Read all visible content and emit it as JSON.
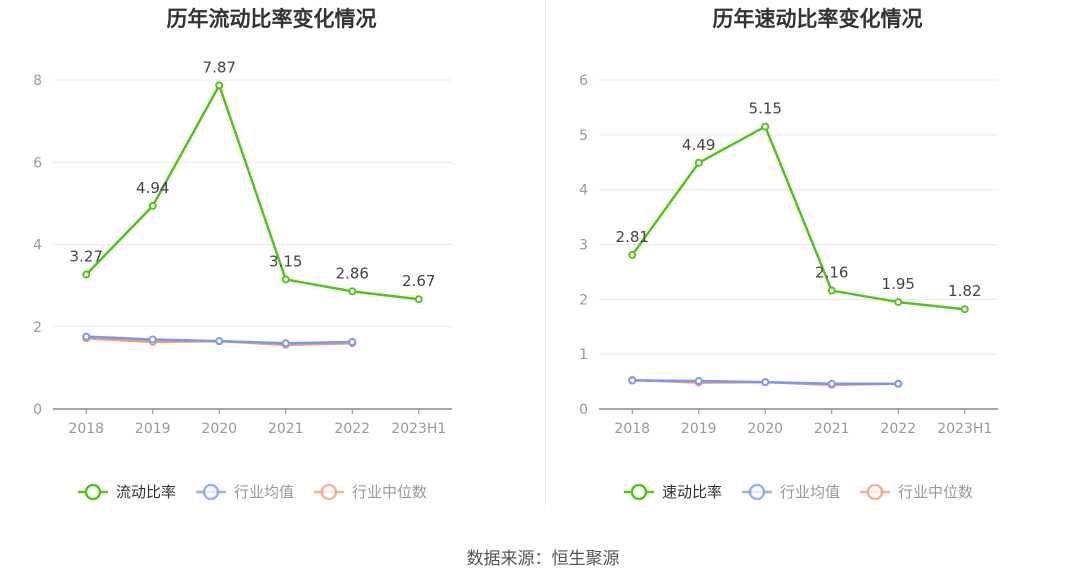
{
  "chart_data": [
    {
      "type": "line",
      "title": "历年流动比率变化情况",
      "categories": [
        "2018",
        "2019",
        "2020",
        "2021",
        "2022",
        "2023H1"
      ],
      "ylim": [
        0,
        8
      ],
      "yticks": [
        0,
        2,
        4,
        6,
        8
      ],
      "grid": true,
      "legend_position": "bottom",
      "series": [
        {
          "name": "流动比率",
          "color": "#52c41a",
          "values": [
            3.27,
            4.94,
            7.87,
            3.15,
            2.86,
            2.67
          ],
          "labels": [
            "3.27",
            "4.94",
            "7.87",
            "3.15",
            "2.86",
            "2.67"
          ]
        },
        {
          "name": "行业均值",
          "color": "#7a9ae8",
          "values": [
            1.76,
            1.69,
            1.65,
            1.6,
            1.63,
            null
          ]
        },
        {
          "name": "行业中位数",
          "color": "#f59a76",
          "values": [
            1.72,
            1.63,
            1.65,
            1.56,
            1.6,
            null
          ]
        }
      ]
    },
    {
      "type": "line",
      "title": "历年速动比率变化情况",
      "categories": [
        "2018",
        "2019",
        "2020",
        "2021",
        "2022",
        "2023H1"
      ],
      "ylim": [
        0,
        6
      ],
      "yticks": [
        0,
        1,
        2,
        3,
        4,
        5,
        6
      ],
      "grid": true,
      "legend_position": "bottom",
      "series": [
        {
          "name": "速动比率",
          "color": "#52c41a",
          "values": [
            2.81,
            4.49,
            5.15,
            2.16,
            1.95,
            1.82
          ],
          "labels": [
            "2.81",
            "4.49",
            "5.15",
            "2.16",
            "1.95",
            "1.82"
          ]
        },
        {
          "name": "行业均值",
          "color": "#7a9ae8",
          "values": [
            0.52,
            0.51,
            0.49,
            0.46,
            0.46,
            null
          ]
        },
        {
          "name": "行业中位数",
          "color": "#f59a76",
          "values": [
            0.53,
            0.48,
            0.49,
            0.44,
            0.46,
            null
          ]
        }
      ]
    }
  ],
  "source": "数据来源：恒生聚源"
}
